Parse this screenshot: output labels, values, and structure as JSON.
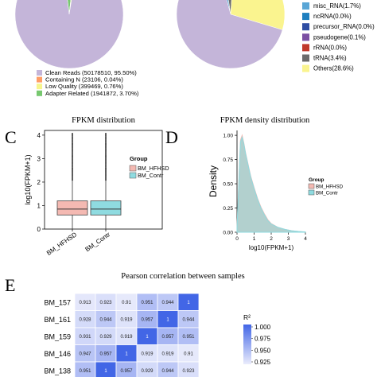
{
  "panels": {
    "C": "C",
    "D": "D",
    "E": "E"
  },
  "chart_data": [
    {
      "type": "pie",
      "slices": [
        {
          "label": "Clean Reads (50178510, 95.50%)",
          "value": 95.5,
          "color": "#c4b5d9"
        },
        {
          "label": "Containing N (23106, 0.04%)",
          "value": 0.04,
          "color": "#ff9d66"
        },
        {
          "label": "Low Quality (399469, 0.76%)",
          "value": 0.76,
          "color": "#f7f58c"
        },
        {
          "label": "Adapter Related (1941872, 3.70%)",
          "value": 3.7,
          "color": "#77c86f"
        }
      ]
    },
    {
      "type": "pie",
      "slices": [
        {
          "label": "misc_RNA(1.7%)",
          "value": 1.7,
          "color": "#5aa6d6"
        },
        {
          "label": "ncRNA(0.0%)",
          "value": 0.0,
          "color": "#1f7fbf"
        },
        {
          "label": "precursor_RNA(0.0%)",
          "value": 0.0,
          "color": "#2e4da3"
        },
        {
          "label": "pseudogene(0.1%)",
          "value": 0.1,
          "color": "#7b4fa3"
        },
        {
          "label": "rRNA(0.0%)",
          "value": 0.0,
          "color": "#c0392b"
        },
        {
          "label": "tRNA(3.4%)",
          "value": 3.4,
          "color": "#6b6b6b"
        },
        {
          "label": "Others(28.6%)",
          "value": 28.6,
          "color": "#faf48f"
        }
      ]
    },
    {
      "type": "box",
      "title": "FPKM distribution",
      "ylabel": "log10(FPKM+1)",
      "categories": [
        "BM_HFHSD",
        "BM_Contr"
      ],
      "ylim": [
        0,
        4.2
      ],
      "yticks": [
        "0",
        "1",
        "2",
        "3",
        "4"
      ],
      "boxes": [
        {
          "name": "BM_HFHSD",
          "q1": 0.6,
          "median": 0.85,
          "q3": 1.2,
          "whisker_low": 0.0,
          "whisker_high": 2.05,
          "outlier_max": 4.1,
          "color": "#f4b9b2"
        },
        {
          "name": "BM_Contr",
          "q1": 0.6,
          "median": 0.85,
          "q3": 1.2,
          "whisker_low": 0.0,
          "whisker_high": 2.05,
          "outlier_max": 4.1,
          "color": "#8fdbe0"
        }
      ],
      "legend": {
        "title": "Group",
        "items": [
          "BM_HFHSD",
          "BM_Contr"
        ]
      }
    },
    {
      "type": "area",
      "title": "FPKM density distribution",
      "xlabel": "log10(FPKM+1)",
      "ylabel": "Density",
      "xlim": [
        0,
        4
      ],
      "ylim": [
        0,
        1.05
      ],
      "xticks": [
        "0",
        "1",
        "2",
        "3",
        "4"
      ],
      "yticks": [
        "0.00",
        "0.25",
        "0.50",
        "0.75",
        "1.00"
      ],
      "x": [
        0.0,
        0.1,
        0.2,
        0.3,
        0.4,
        0.5,
        0.6,
        0.7,
        0.8,
        1.0,
        1.2,
        1.4,
        1.6,
        1.8,
        2.0,
        2.4,
        2.8,
        3.2,
        3.6,
        4.0
      ],
      "series": [
        {
          "name": "BM_HFHSD",
          "values": [
            0.05,
            0.5,
            0.95,
            1.0,
            0.92,
            0.82,
            0.74,
            0.66,
            0.58,
            0.46,
            0.35,
            0.26,
            0.19,
            0.13,
            0.09,
            0.05,
            0.03,
            0.015,
            0.008,
            0.003
          ],
          "color": "#f4b9b2"
        },
        {
          "name": "BM_Contr",
          "values": [
            0.05,
            0.48,
            0.93,
            0.98,
            0.91,
            0.81,
            0.73,
            0.65,
            0.57,
            0.45,
            0.34,
            0.25,
            0.18,
            0.12,
            0.085,
            0.05,
            0.03,
            0.015,
            0.008,
            0.003
          ],
          "color": "#8fdbe0"
        }
      ],
      "legend": {
        "title": "Group",
        "items": [
          "BM_HFHSD",
          "BM_Contr"
        ]
      }
    },
    {
      "type": "heatmap",
      "title": "Pearson correlation between samples",
      "rows": [
        "BM_157",
        "BM_161",
        "BM_159",
        "BM_146",
        "BM_138"
      ],
      "cols": 6,
      "values": [
        [
          0.913,
          0.923,
          0.91,
          0.951,
          0.944,
          1
        ],
        [
          0.928,
          0.944,
          0.919,
          0.957,
          1,
          0.944
        ],
        [
          0.931,
          0.929,
          0.919,
          1,
          0.957,
          0.951
        ],
        [
          0.947,
          0.957,
          1,
          0.919,
          0.919,
          0.91
        ],
        [
          0.951,
          1,
          0.957,
          0.929,
          0.944,
          0.923
        ]
      ],
      "colorbar": {
        "title": "R²",
        "ticks": [
          "1.000",
          "0.975",
          "0.950",
          "0.925"
        ],
        "range": [
          0.9,
          1.0
        ]
      }
    }
  ]
}
